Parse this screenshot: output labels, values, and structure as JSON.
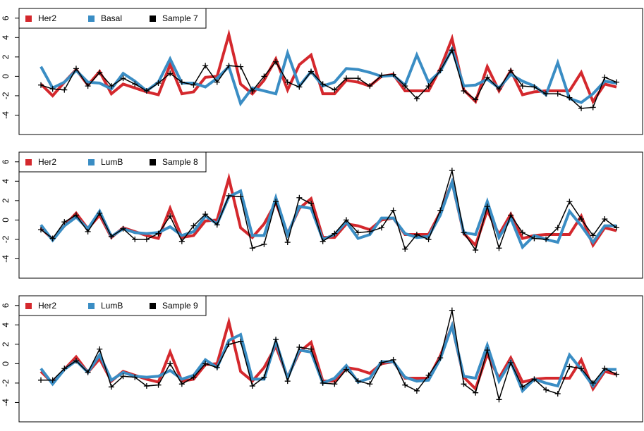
{
  "chart_data": [
    {
      "type": "line",
      "ylim": [
        -6,
        7
      ],
      "yticks": [
        -4,
        -2,
        0,
        2,
        4,
        6
      ],
      "legend": "top-left",
      "series": [
        {
          "name": "Her2",
          "color": "#d4282d",
          "values": [
            -0.8,
            -2.0,
            -0.6,
            0.7,
            -0.9,
            0.5,
            -1.8,
            -0.8,
            -1.2,
            -1.6,
            -1.9,
            1.2,
            -1.8,
            -1.6,
            -0.1,
            0.0,
            4.3,
            -0.8,
            -1.8,
            -0.4,
            1.8,
            -1.4,
            1.2,
            2.2,
            -1.8,
            -1.8,
            -0.4,
            -0.6,
            -1.0,
            0.0,
            0.2,
            -1.5,
            -1.5,
            -1.5,
            0.8,
            3.9,
            -1.4,
            -2.6,
            1.0,
            -1.5,
            0.6,
            -1.9,
            -1.6,
            -1.5,
            -1.5,
            -1.5,
            0.4,
            -2.6,
            -0.8,
            -1.1
          ]
        },
        {
          "name": "Basal",
          "color": "#3a8dc4",
          "values": [
            1.0,
            -1.2,
            -0.6,
            0.6,
            -0.6,
            -0.7,
            -1.3,
            0.3,
            -0.5,
            -1.5,
            -0.6,
            1.8,
            -0.7,
            -0.7,
            -1.1,
            -0.2,
            1.0,
            -2.8,
            -1.2,
            -1.5,
            -1.8,
            2.4,
            -1.0,
            0.5,
            -1.0,
            -0.6,
            0.8,
            0.7,
            0.4,
            0.0,
            0.1,
            -0.9,
            2.2,
            -0.6,
            0.5,
            2.8,
            -1.0,
            -0.9,
            -0.3,
            -1.2,
            0.2,
            -0.5,
            -1.0,
            -1.9,
            1.4,
            -2.3,
            -2.7,
            -1.8,
            -0.5,
            -0.7
          ]
        },
        {
          "name": "Sample 7",
          "color": "#000000",
          "values": [
            -0.9,
            -1.3,
            -1.4,
            0.8,
            -1.0,
            0.4,
            -1.0,
            -0.2,
            -0.8,
            -1.5,
            -0.7,
            0.3,
            -0.6,
            -0.9,
            1.1,
            -0.6,
            1.1,
            1.0,
            -1.5,
            0.0,
            1.5,
            -0.6,
            -1.1,
            0.5,
            -0.8,
            -1.4,
            -0.2,
            -0.2,
            -1.0,
            0.1,
            0.2,
            -1.0,
            -2.3,
            -1.0,
            0.6,
            2.7,
            -1.5,
            -2.4,
            -0.1,
            -1.3,
            0.6,
            -1.0,
            -1.1,
            -1.8,
            -1.8,
            -2.2,
            -3.3,
            -3.2,
            -0.1,
            -0.6
          ]
        }
      ]
    },
    {
      "type": "line",
      "ylim": [
        -6,
        7
      ],
      "yticks": [
        -4,
        -2,
        0,
        2,
        4,
        6
      ],
      "legend": "top-left",
      "series": [
        {
          "name": "Her2",
          "color": "#d4282d",
          "values": [
            -0.8,
            -2.0,
            -0.6,
            0.7,
            -0.9,
            0.5,
            -1.8,
            -0.8,
            -1.2,
            -1.6,
            -1.9,
            1.2,
            -1.8,
            -1.6,
            -0.1,
            0.0,
            4.3,
            -0.8,
            -1.8,
            -0.4,
            1.8,
            -1.4,
            1.2,
            2.2,
            -1.8,
            -1.8,
            -0.4,
            -0.6,
            -1.0,
            0.0,
            0.2,
            -1.5,
            -1.5,
            -1.5,
            0.8,
            3.9,
            -1.4,
            -2.6,
            1.0,
            -1.5,
            0.6,
            -1.9,
            -1.6,
            -1.5,
            -1.5,
            -1.5,
            0.4,
            -2.6,
            -0.8,
            -1.1
          ]
        },
        {
          "name": "LumB",
          "color": "#3a8dc4",
          "values": [
            -0.5,
            -2.1,
            -0.6,
            0.3,
            -0.9,
            0.9,
            -1.7,
            -0.9,
            -1.3,
            -1.4,
            -1.3,
            -0.7,
            -1.6,
            -1.2,
            0.4,
            -0.4,
            2.4,
            3.0,
            -1.6,
            -1.6,
            2.3,
            -1.5,
            1.4,
            1.2,
            -2.0,
            -1.5,
            -0.2,
            -1.9,
            -1.5,
            0.2,
            0.2,
            -1.4,
            -1.8,
            -1.7,
            0.5,
            3.9,
            -1.3,
            -1.5,
            1.9,
            -1.8,
            0.2,
            -2.8,
            -1.6,
            -2.0,
            -2.3,
            0.9,
            -0.6,
            -2.3,
            -0.6,
            -0.6
          ]
        },
        {
          "name": "Sample 8",
          "color": "#000000",
          "values": [
            -1.0,
            -1.9,
            -0.2,
            0.5,
            -1.2,
            0.7,
            -1.7,
            -0.9,
            -2.0,
            -2.0,
            -1.4,
            0.4,
            -2.2,
            -0.6,
            0.6,
            -0.5,
            2.5,
            2.4,
            -2.9,
            -2.5,
            1.9,
            -2.3,
            2.3,
            1.7,
            -2.2,
            -1.4,
            0.0,
            -1.3,
            -1.2,
            -0.8,
            1.0,
            -3.0,
            -1.5,
            -2.0,
            1.0,
            5.1,
            -1.3,
            -3.1,
            1.4,
            -2.9,
            0.5,
            -1.3,
            -1.9,
            -2.0,
            -0.8,
            1.9,
            0.1,
            -1.6,
            0.1,
            -0.8
          ]
        }
      ]
    },
    {
      "type": "line",
      "ylim": [
        -6,
        7
      ],
      "yticks": [
        -4,
        -2,
        0,
        2,
        4,
        6
      ],
      "legend": "top-left",
      "series": [
        {
          "name": "Her2",
          "color": "#d4282d",
          "values": [
            -0.8,
            -2.0,
            -0.6,
            0.7,
            -0.9,
            0.5,
            -1.8,
            -0.8,
            -1.2,
            -1.6,
            -1.9,
            1.2,
            -1.8,
            -1.6,
            -0.1,
            0.0,
            4.3,
            -0.8,
            -1.8,
            -0.4,
            1.8,
            -1.4,
            1.2,
            2.2,
            -1.8,
            -1.8,
            -0.4,
            -0.6,
            -1.0,
            0.0,
            0.2,
            -1.5,
            -1.5,
            -1.5,
            0.8,
            3.9,
            -1.4,
            -2.6,
            1.0,
            -1.5,
            0.6,
            -1.9,
            -1.6,
            -1.5,
            -1.5,
            -1.5,
            0.4,
            -2.6,
            -0.8,
            -1.1
          ]
        },
        {
          "name": "LumB",
          "color": "#3a8dc4",
          "values": [
            -0.5,
            -2.1,
            -0.6,
            0.3,
            -0.9,
            0.9,
            -1.7,
            -0.9,
            -1.3,
            -1.4,
            -1.3,
            -0.7,
            -1.6,
            -1.2,
            0.4,
            -0.4,
            2.4,
            3.0,
            -1.6,
            -1.6,
            2.3,
            -1.5,
            1.4,
            1.2,
            -2.0,
            -1.5,
            -0.2,
            -1.9,
            -1.5,
            0.2,
            0.2,
            -1.4,
            -1.8,
            -1.7,
            0.5,
            3.9,
            -1.3,
            -1.5,
            1.9,
            -1.8,
            0.2,
            -2.8,
            -1.6,
            -2.0,
            -2.3,
            0.9,
            -0.6,
            -2.3,
            -0.6,
            -0.6
          ]
        },
        {
          "name": "Sample 9",
          "color": "#000000",
          "values": [
            -1.7,
            -1.7,
            -0.5,
            0.3,
            -0.9,
            1.5,
            -2.4,
            -1.3,
            -1.4,
            -2.3,
            -2.2,
            0.0,
            -2.1,
            -1.4,
            0.0,
            -0.4,
            2.0,
            2.3,
            -2.3,
            -1.4,
            2.5,
            -1.8,
            1.7,
            1.5,
            -2.0,
            -2.1,
            -0.6,
            -1.8,
            -2.1,
            0.1,
            0.4,
            -2.2,
            -2.8,
            -1.2,
            0.6,
            5.5,
            -2.1,
            -3.0,
            1.4,
            -3.7,
            0.1,
            -2.4,
            -1.6,
            -2.7,
            -3.1,
            -0.3,
            -0.5,
            -2.0,
            -0.5,
            -1.1
          ]
        }
      ]
    }
  ]
}
